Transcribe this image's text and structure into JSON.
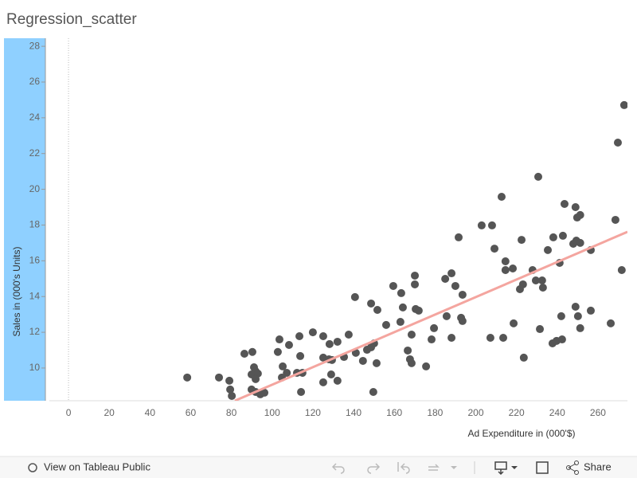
{
  "chart_data": {
    "type": "scatter",
    "title": "Regression_scatter",
    "x_label": "Ad Expenditure in (000'$)",
    "y_label": "Sales in (000's Units)",
    "xlim": [
      -9.4,
      274.5
    ],
    "ylim": [
      8.17,
      28.45
    ],
    "xticks": [
      0,
      20,
      40,
      60,
      80,
      100,
      120,
      140,
      160,
      180,
      200,
      220,
      240,
      260
    ],
    "yticks": [
      10,
      12,
      14,
      16,
      18,
      20,
      22,
      24,
      26,
      28
    ],
    "color": "#555555",
    "x": [
      58.3,
      73.9,
      79.0,
      79.4,
      80.2,
      86.4,
      90.3,
      91.1,
      89.9,
      91.9,
      93.0,
      91.9,
      89.9,
      91.9,
      94.2,
      96.2,
      103.6,
      102.8,
      105.2,
      107.2,
      104.8,
      108.3,
      113.4,
      113.8,
      112.2,
      114.9,
      114.2,
      120.0,
      125.1,
      125.1,
      127.9,
      129.4,
      128.2,
      132.1,
      129.0,
      125.1,
      132.1,
      135.3,
      137.6,
      140.7,
      141.1,
      144.6,
      146.6,
      148.6,
      150.1,
      148.6,
      151.7,
      151.3,
      149.7,
      156.0,
      159.5,
      163.4,
      164.2,
      163.0,
      166.6,
      167.7,
      168.5,
      168.5,
      170.1,
      170.1,
      170.5,
      172.0,
      175.6,
      178.3,
      179.5,
      185.0,
      185.7,
      188.1,
      188.1,
      190.0,
      191.6,
      192.8,
      193.5,
      193.5,
      202.9,
      208.0,
      209.2,
      207.2,
      212.7,
      214.6,
      214.6,
      213.5,
      218.2,
      218.6,
      222.5,
      221.7,
      223.2,
      223.6,
      227.9,
      229.5,
      230.7,
      231.5,
      232.6,
      233.0,
      235.4,
      238.1,
      237.7,
      239.7,
      241.2,
      242.8,
      243.6,
      242.0,
      242.4,
      247.9,
      249.4,
      249.0,
      249.8,
      251.3,
      251.3,
      249.0,
      250.2,
      251.3,
      256.5,
      256.5,
      266.3,
      268.6,
      269.8,
      271.7,
      272.9
    ],
    "y": [
      9.47,
      9.47,
      9.29,
      8.8,
      8.44,
      10.8,
      10.9,
      10.04,
      9.64,
      9.82,
      9.69,
      9.38,
      8.8,
      8.66,
      8.53,
      8.62,
      11.6,
      10.9,
      10.09,
      9.73,
      9.47,
      11.29,
      11.78,
      10.67,
      9.73,
      9.73,
      8.66,
      12.0,
      11.78,
      10.58,
      10.49,
      10.45,
      11.34,
      11.47,
      9.64,
      9.2,
      9.29,
      10.62,
      11.87,
      13.97,
      10.85,
      10.4,
      11.02,
      11.16,
      11.38,
      13.61,
      13.25,
      10.27,
      8.66,
      12.41,
      14.59,
      14.19,
      13.39,
      12.58,
      10.98,
      10.49,
      10.27,
      11.87,
      15.17,
      14.68,
      13.3,
      13.21,
      10.09,
      11.6,
      12.23,
      14.99,
      12.9,
      15.3,
      11.69,
      14.59,
      17.31,
      12.81,
      12.63,
      14.1,
      17.98,
      17.98,
      16.68,
      11.69,
      19.58,
      15.97,
      15.48,
      11.69,
      15.57,
      12.5,
      17.17,
      14.41,
      14.68,
      10.58,
      15.48,
      14.9,
      20.7,
      12.18,
      14.9,
      14.5,
      16.6,
      17.31,
      11.38,
      11.52,
      15.88,
      17.4,
      19.18,
      12.9,
      11.6,
      16.95,
      17.13,
      19.0,
      18.42,
      18.56,
      17.0,
      13.43,
      12.9,
      12.23,
      16.6,
      13.21,
      12.5,
      18.29,
      22.61,
      15.48,
      24.71
    ],
    "trend_line": {
      "color": "#f4a59f",
      "x": [
        81.7,
        274.5
      ],
      "y": [
        8.17,
        17.62
      ]
    }
  },
  "toolbar": {
    "view_link": "View on Tableau Public",
    "share": "Share"
  }
}
